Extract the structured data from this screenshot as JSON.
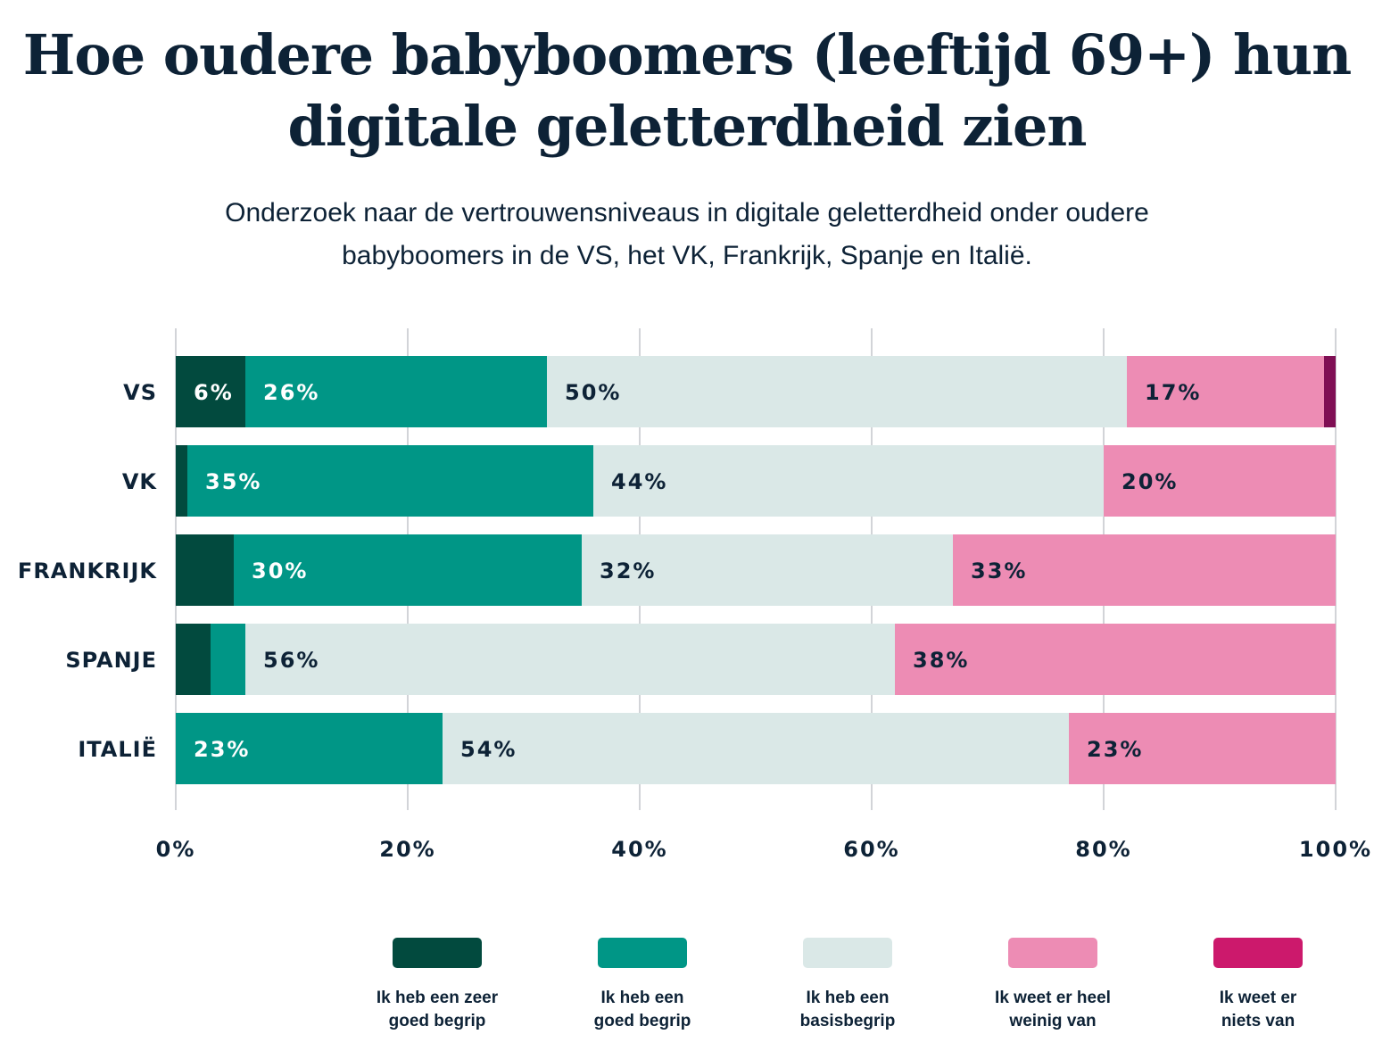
{
  "chart_data": {
    "type": "bar",
    "orientation": "horizontal",
    "stacked": true,
    "title": "Hoe oudere babyboomers (leeftijd 69+) hun digitale geletterdheid zien",
    "subtitle": "Onderzoek naar de vertrouwensniveaus in digitale geletterdheid onder oudere babyboomers in de VS, het VK, Frankrijk, Spanje en Italië.",
    "categories": [
      "VS",
      "VK",
      "FRANKRIJK",
      "SPANJE",
      "ITALIË"
    ],
    "xlim": [
      0,
      100
    ],
    "xticks": [
      "0%",
      "20%",
      "40%",
      "60%",
      "80%",
      "100%"
    ],
    "grid": true,
    "legend_position": "bottom",
    "series": [
      {
        "name": "Ik heb een zeer goed begrip",
        "values": [
          6,
          1,
          5,
          3,
          0
        ],
        "labels": [
          "6%",
          "",
          "",
          "",
          ""
        ],
        "color": "#024a3e",
        "legend_color": "#024a3e",
        "label_color": "#ffffff"
      },
      {
        "name": "Ik heb een goed begrip",
        "values": [
          26,
          35,
          30,
          3,
          23
        ],
        "labels": [
          "26%",
          "35%",
          "30%",
          "",
          "23%"
        ],
        "color": "#009686",
        "legend_color": "#009686",
        "label_color": "#ffffff"
      },
      {
        "name": "Ik heb een basisbegrip",
        "values": [
          50,
          44,
          32,
          56,
          54
        ],
        "labels": [
          "50%",
          "44%",
          "32%",
          "56%",
          "54%"
        ],
        "color": "#dae8e7",
        "legend_color": "#dae8e7",
        "label_color": "#0d2236"
      },
      {
        "name": "Ik weet er heel weinig van",
        "values": [
          17,
          20,
          33,
          38,
          23
        ],
        "labels": [
          "17%",
          "20%",
          "33%",
          "38%",
          "23%"
        ],
        "color": "#ed8cb4",
        "legend_color": "#ed8cb4",
        "label_color": "#0d2236"
      },
      {
        "name": "Ik weet er niets van",
        "values": [
          1,
          0,
          0,
          0,
          0
        ],
        "labels": [
          "",
          "",
          "",
          "",
          ""
        ],
        "color": "#7f0f54",
        "legend_color": "#cc196c",
        "label_color": "#ffffff"
      }
    ],
    "legend_lines": [
      [
        "Ik heb een zeer",
        "goed begrip"
      ],
      [
        "Ik heb een",
        "goed begrip"
      ],
      [
        "Ik heb een",
        "basisbegrip"
      ],
      [
        "Ik weet er heel",
        "weinig van"
      ],
      [
        "Ik weet er",
        "niets van"
      ]
    ]
  }
}
